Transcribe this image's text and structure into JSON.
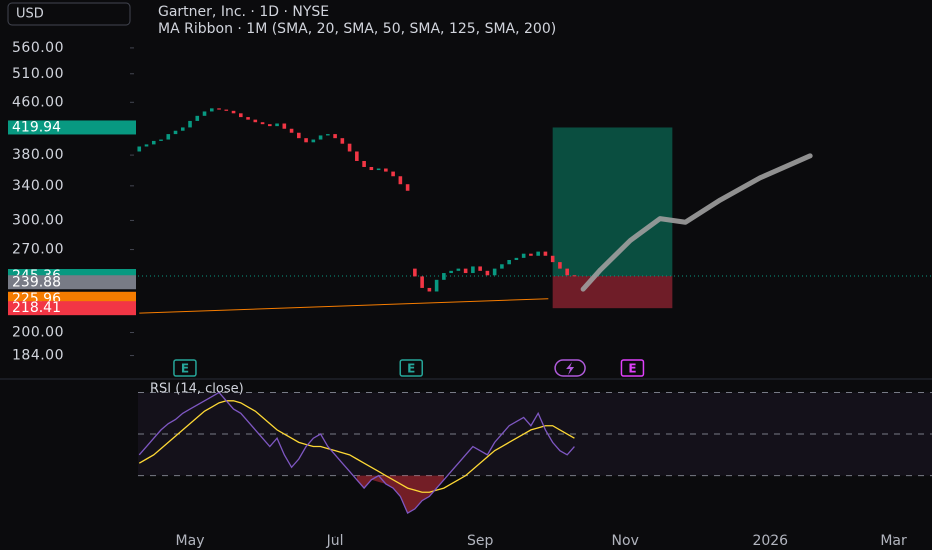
{
  "chart_data": {
    "type": "candlestick",
    "currency": "USD",
    "title": "Gartner, Inc. · 1D · NYSE",
    "subtitle": "MA Ribbon · 1M (SMA, 20, SMA, 50, SMA, 125, SMA, 200)",
    "log_scale": true,
    "xlim": [
      2.38,
      15.23
    ],
    "xticks": [
      {
        "value": 5,
        "label": "May"
      },
      {
        "value": 7,
        "label": "Jul"
      },
      {
        "value": 9,
        "label": "Sep"
      },
      {
        "value": 11,
        "label": "Nov"
      },
      {
        "value": 13,
        "label": "2026"
      },
      {
        "value": 14.7,
        "label": "Mar"
      }
    ],
    "ylim": [
      171.5,
      666
    ],
    "yticks": [
      {
        "value": 560,
        "label": "560.00"
      },
      {
        "value": 510,
        "label": "510.00"
      },
      {
        "value": 460,
        "label": "460.00"
      },
      {
        "value": 380,
        "label": "380.00"
      },
      {
        "value": 340,
        "label": "340.00"
      },
      {
        "value": 300,
        "label": "300.00"
      },
      {
        "value": 270,
        "label": "270.00"
      },
      {
        "value": 200,
        "label": "200.00"
      },
      {
        "value": 184,
        "label": "184.00"
      }
    ],
    "up_color": "#089981",
    "down_color": "#f23645",
    "x": [
      4.3,
      4.4,
      4.5,
      4.6,
      4.7,
      4.8,
      4.9,
      5.0,
      5.1,
      5.2,
      5.3,
      5.4,
      5.5,
      5.6,
      5.7,
      5.8,
      5.9,
      6.0,
      6.1,
      6.2,
      6.3,
      6.4,
      6.5,
      6.6,
      6.7,
      6.8,
      6.9,
      7.0,
      7.1,
      7.2,
      7.3,
      7.4,
      7.5,
      7.6,
      7.7,
      7.8,
      7.9,
      8.0,
      8.1,
      8.2,
      8.3,
      8.4,
      8.5,
      8.6,
      8.7,
      8.8,
      8.9,
      9.0,
      9.1,
      9.2,
      9.3,
      9.4,
      9.5,
      9.6,
      9.7,
      9.8,
      9.9,
      10.0,
      10.1,
      10.2,
      10.3
    ],
    "open": [
      385,
      392,
      395,
      400,
      402,
      410,
      415,
      420,
      430,
      438,
      445,
      450,
      448,
      446,
      442,
      436,
      432,
      428,
      425,
      422,
      426,
      418,
      412,
      404,
      398,
      402,
      408,
      410,
      404,
      396,
      385,
      372,
      364,
      360,
      362,
      358,
      352,
      342,
      252,
      245,
      235,
      232,
      242,
      248,
      250,
      252,
      248,
      254,
      250,
      246,
      252,
      256,
      260,
      262,
      266,
      264,
      268,
      264,
      258,
      252,
      246
    ],
    "close": [
      392,
      395,
      400,
      402,
      410,
      415,
      420,
      430,
      438,
      445,
      450,
      448,
      446,
      442,
      436,
      432,
      428,
      425,
      422,
      426,
      418,
      412,
      404,
      398,
      402,
      408,
      410,
      404,
      396,
      385,
      372,
      364,
      360,
      362,
      358,
      352,
      342,
      334,
      245,
      235,
      232,
      242,
      248,
      250,
      252,
      248,
      254,
      250,
      246,
      252,
      256,
      260,
      262,
      266,
      264,
      268,
      264,
      258,
      252,
      246,
      245.36
    ],
    "price_labels": [
      {
        "value": 419.94,
        "color": "#089981"
      },
      {
        "value": 245.36,
        "color": "#089981"
      },
      {
        "value": 239.88,
        "color": "#787b86"
      },
      {
        "value": 225.96,
        "color": "#f57c00"
      },
      {
        "value": 218.41,
        "color": "#f23645"
      }
    ],
    "ma_line": {
      "x": [
        4.3,
        9.94
      ],
      "values": [
        214.5,
        226
      ],
      "color": "#f57c00"
    },
    "position": {
      "x_start": 10.0,
      "x_end": 11.65,
      "target": 419.94,
      "entry": 245.36,
      "stop": 218.41,
      "profit_color": "#0a5a4a",
      "loss_color": "#7a1f2b"
    },
    "projection": {
      "x": [
        10.42,
        10.66,
        11.07,
        11.48,
        11.83,
        12.31,
        12.86,
        13.55
      ],
      "values": [
        234,
        251,
        279,
        302,
        298,
        323,
        350,
        379
      ],
      "color": "#9e9e9e"
    },
    "earnings": [
      {
        "x": 4.93,
        "label": "E"
      },
      {
        "x": 8.05,
        "label": "E"
      },
      {
        "x": 11.1,
        "label": "E"
      }
    ],
    "flash_events": {
      "x": [
        10.24
      ]
    },
    "rsi": {
      "title": "RSI (14, close)",
      "ylim": [
        0,
        76
      ],
      "levels": [
        70,
        50,
        30
      ],
      "rsi_color": "#7e57c2",
      "ma_color": "#fdd835",
      "values": [
        40,
        44,
        48,
        52,
        55,
        57,
        60,
        62,
        64,
        66,
        68,
        70,
        66,
        62,
        60,
        56,
        52,
        48,
        44,
        48,
        40,
        34,
        38,
        44,
        48,
        50,
        44,
        40,
        36,
        32,
        28,
        24,
        28,
        30,
        26,
        24,
        20,
        12,
        14,
        18,
        20,
        24,
        28,
        32,
        36,
        40,
        44,
        42,
        40,
        46,
        50,
        54,
        56,
        58,
        54,
        60,
        52,
        46,
        42,
        40,
        44
      ],
      "ma": [
        36,
        38,
        40,
        43,
        46,
        49,
        52,
        55,
        58,
        61,
        63,
        65,
        66,
        66,
        65,
        63,
        61,
        58,
        55,
        52,
        50,
        48,
        46,
        45,
        44,
        44,
        43,
        42,
        41,
        40,
        38,
        36,
        34,
        32,
        30,
        28,
        26,
        24,
        23,
        22,
        22,
        23,
        24,
        26,
        28,
        30,
        33,
        36,
        39,
        42,
        44,
        46,
        48,
        50,
        52,
        53,
        54,
        54,
        52,
        50,
        48
      ]
    }
  }
}
